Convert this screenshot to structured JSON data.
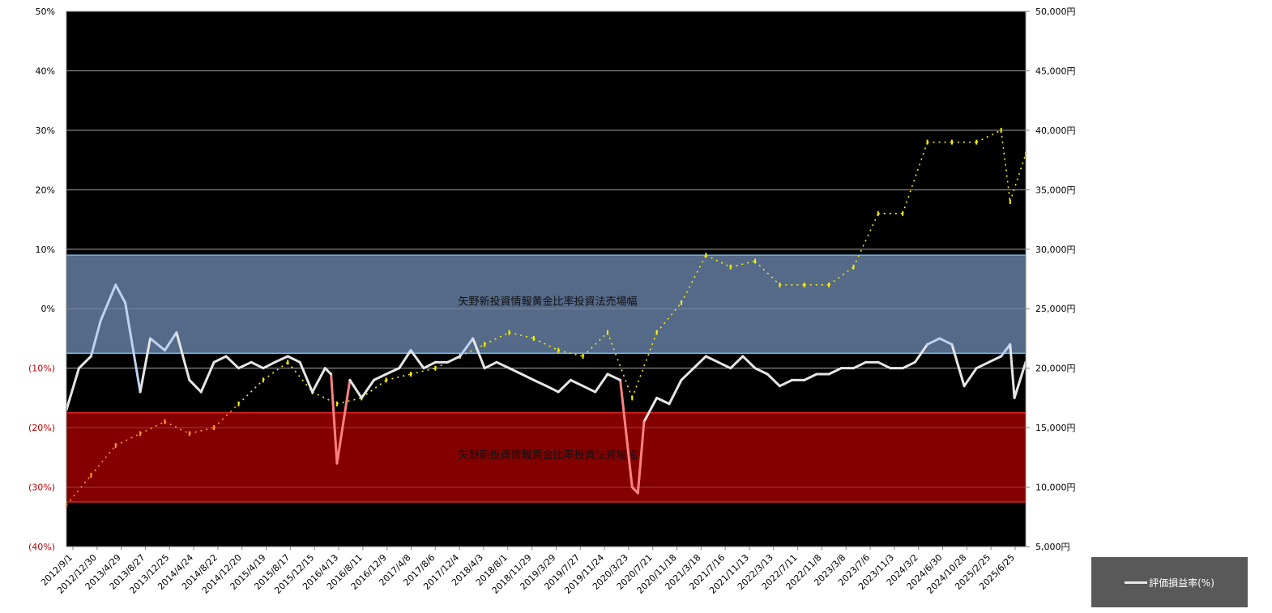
{
  "chart_data": {
    "type": "line",
    "title": "",
    "colors": {
      "plot_background": "#000000",
      "sell_band": "#5a6f8f",
      "buy_band": "#8b0000",
      "return_line": "#e6e6e6",
      "return_line_in_sell_band": "#bcd2f0",
      "return_line_in_buy_band": "#ff8080",
      "price_series": "#f5f000",
      "negative_tick_label": "#c00000"
    },
    "y_left": {
      "min": -40,
      "max": 50,
      "unit": "%",
      "tick_labels": [
        "50%",
        "40%",
        "30%",
        "20%",
        "10%",
        "0%",
        "(10%)",
        "(20%)",
        "(30%)",
        "(40%)"
      ],
      "tick_values": [
        50,
        40,
        30,
        20,
        10,
        0,
        -10,
        -20,
        -30,
        -40
      ]
    },
    "y_right": {
      "min": 5000,
      "max": 50000,
      "unit": "円",
      "tick_labels": [
        "50,000円",
        "45,000円",
        "40,000円",
        "35,000円",
        "30,000円",
        "25,000円",
        "20,000円",
        "15,000円",
        "10,000円",
        "5,000円"
      ],
      "tick_values": [
        50000,
        45000,
        40000,
        35000,
        30000,
        25000,
        20000,
        15000,
        10000,
        5000
      ]
    },
    "x_tick_labels": [
      "2012/9/1",
      "2012/12/30",
      "2013/4/29",
      "2013/8/27",
      "2013/12/25",
      "2014/4/24",
      "2014/8/22",
      "2014/12/20",
      "2015/4/19",
      "2015/8/17",
      "2015/12/15",
      "2016/4/13",
      "2016/8/11",
      "2016/12/9",
      "2017/4/8",
      "2017/8/6",
      "2017/12/4",
      "2018/4/3",
      "2018/8/1",
      "2018/11/29",
      "2019/3/29",
      "2019/7/27",
      "2019/11/24",
      "2020/3/23",
      "2020/7/21",
      "2020/11/18",
      "2021/3/18",
      "2021/7/16",
      "2021/11/13",
      "2022/3/13",
      "2022/7/11",
      "2022/11/8",
      "2023/3/8",
      "2023/7/6",
      "2023/11/3",
      "2024/3/2",
      "2024/6/30",
      "2024/10/28",
      "2025/2/25",
      "2025/6/25"
    ],
    "bands": [
      {
        "label": "矢野新投資情報黄金比率投資法売場幅",
        "y_from": -7.5,
        "y_to": 9
      },
      {
        "label": "矢野新投資情報黄金比率投資法買場幅",
        "y_from": -32.5,
        "y_to": -17.5
      }
    ],
    "series": [
      {
        "name": "評価損益率(%)",
        "axis": "left",
        "x": [
          "2012/9/1",
          "2012/11/1",
          "2012/12/30",
          "2013/2/15",
          "2013/4/29",
          "2013/6/15",
          "2013/8/27",
          "2013/10/15",
          "2013/12/25",
          "2014/2/20",
          "2014/4/24",
          "2014/6/20",
          "2014/8/22",
          "2014/10/20",
          "2014/12/20",
          "2015/2/20",
          "2015/4/19",
          "2015/6/15",
          "2015/8/17",
          "2015/10/15",
          "2015/12/15",
          "2016/2/15",
          "2016/3/15",
          "2016/4/13",
          "2016/6/15",
          "2016/8/11",
          "2016/10/10",
          "2016/12/9",
          "2017/2/10",
          "2017/4/8",
          "2017/6/10",
          "2017/8/6",
          "2017/10/5",
          "2017/12/4",
          "2018/2/5",
          "2018/4/3",
          "2018/6/1",
          "2018/8/1",
          "2018/10/1",
          "2018/11/29",
          "2019/1/30",
          "2019/3/29",
          "2019/5/28",
          "2019/7/27",
          "2019/9/25",
          "2019/11/24",
          "2020/1/25",
          "2020/3/23",
          "2020/4/20",
          "2020/5/20",
          "2020/7/21",
          "2020/9/20",
          "2020/11/18",
          "2021/1/17",
          "2021/3/18",
          "2021/5/17",
          "2021/7/16",
          "2021/9/14",
          "2021/11/13",
          "2022/1/12",
          "2022/3/13",
          "2022/5/12",
          "2022/7/11",
          "2022/9/9",
          "2022/11/8",
          "2023/1/7",
          "2023/3/8",
          "2023/5/7",
          "2023/7/6",
          "2023/9/4",
          "2023/11/3",
          "2024/1/2",
          "2024/3/2",
          "2024/5/1",
          "2024/6/30",
          "2024/8/29",
          "2024/10/28",
          "2024/12/27",
          "2025/2/25",
          "2025/4/10",
          "2025/5/1",
          "2025/6/25"
        ],
        "values": [
          -17,
          -10,
          -8,
          -2,
          4,
          1,
          -14,
          -5,
          -7,
          -4,
          -12,
          -14,
          -9,
          -8,
          -10,
          -9,
          -10,
          -9,
          -8,
          -9,
          -14,
          -10,
          -11,
          -26,
          -12,
          -15,
          -12,
          -11,
          -10,
          -7,
          -10,
          -9,
          -9,
          -8,
          -5,
          -10,
          -9,
          -10,
          -11,
          -12,
          -13,
          -14,
          -12,
          -13,
          -14,
          -11,
          -12,
          -30,
          -31,
          -19,
          -15,
          -16,
          -12,
          -10,
          -8,
          -9,
          -10,
          -8,
          -10,
          -11,
          -13,
          -12,
          -12,
          -11,
          -11,
          -10,
          -10,
          -9,
          -9,
          -10,
          -10,
          -9,
          -6,
          -5,
          -6,
          -13,
          -10,
          -9,
          -8,
          -6,
          -15,
          -9
        ],
        "color": "#e6e6e6"
      },
      {
        "name": "",
        "axis": "right",
        "x": [
          "2012/9/1",
          "2012/12/30",
          "2013/4/29",
          "2013/8/27",
          "2013/12/25",
          "2014/4/24",
          "2014/8/22",
          "2014/12/20",
          "2015/4/19",
          "2015/8/17",
          "2015/12/15",
          "2016/4/13",
          "2016/8/11",
          "2016/12/9",
          "2017/4/8",
          "2017/8/6",
          "2017/12/4",
          "2018/4/3",
          "2018/8/1",
          "2018/11/29",
          "2019/3/29",
          "2019/7/27",
          "2019/11/24",
          "2020/3/23",
          "2020/7/21",
          "2020/11/18",
          "2021/3/18",
          "2021/7/16",
          "2021/11/13",
          "2022/3/13",
          "2022/7/11",
          "2022/11/8",
          "2023/3/8",
          "2023/7/6",
          "2023/11/3",
          "2024/3/2",
          "2024/6/30",
          "2024/10/28",
          "2025/2/25",
          "2025/4/10",
          "2025/6/25"
        ],
        "values": [
          8500,
          11000,
          13500,
          14500,
          15500,
          14500,
          15000,
          17000,
          19000,
          20500,
          18000,
          17000,
          17500,
          19000,
          19500,
          20000,
          21000,
          22000,
          23000,
          22500,
          21500,
          21000,
          23000,
          17500,
          23000,
          25500,
          29500,
          28500,
          29000,
          27000,
          27000,
          27000,
          28500,
          33000,
          33000,
          39000,
          39000,
          39000,
          40000,
          34000,
          38000
        ],
        "color": "#f5f000"
      }
    ],
    "grid": true,
    "legend": {
      "position": "bottom-right",
      "entries": [
        "評価損益率(%)"
      ]
    }
  }
}
